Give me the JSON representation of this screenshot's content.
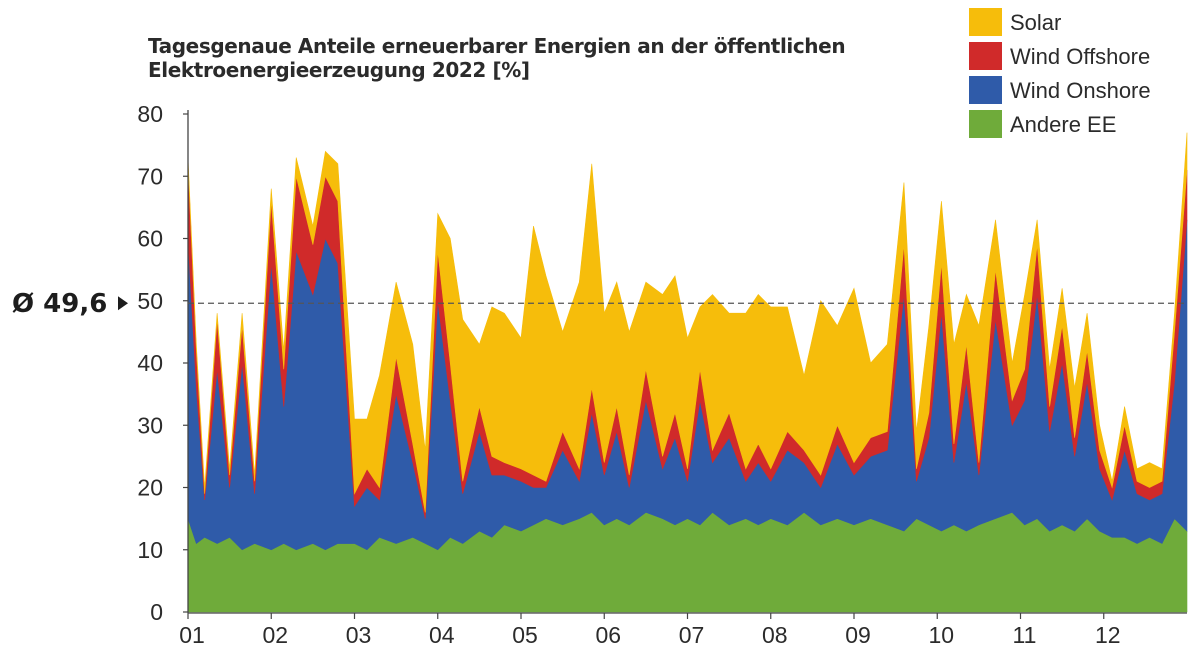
{
  "chart_data": {
    "type": "area",
    "stacked": true,
    "title": "Tagesgenaue Anteile erneuerbarer Energien an der öffentlichen Elektroenergieerzeugung 2022 [%]",
    "title_lines": [
      "Tagesgenaue Anteile erneuerbarer Energien an der öffentlichen",
      "Elektroenergieerzeugung 2022 [%]"
    ],
    "xlabel": "",
    "ylabel": "",
    "ylim": [
      0,
      80
    ],
    "yticks": [
      0,
      10,
      20,
      30,
      40,
      50,
      60,
      70,
      80
    ],
    "xticks": [
      "01",
      "02",
      "03",
      "04",
      "05",
      "06",
      "07",
      "08",
      "09",
      "10",
      "11",
      "12"
    ],
    "average": {
      "value": 49.6,
      "label": "Ø 49,6"
    },
    "legend_position": "top-right",
    "x_unit": "month (fractional, 1.0 = start of January)",
    "x": [
      1.0,
      1.1,
      1.2,
      1.35,
      1.5,
      1.65,
      1.8,
      2.0,
      2.15,
      2.3,
      2.5,
      2.65,
      2.8,
      3.0,
      3.15,
      3.3,
      3.5,
      3.7,
      3.85,
      4.0,
      4.15,
      4.3,
      4.5,
      4.65,
      4.8,
      5.0,
      5.15,
      5.3,
      5.5,
      5.7,
      5.85,
      6.0,
      6.15,
      6.3,
      6.5,
      6.7,
      6.85,
      7.0,
      7.15,
      7.3,
      7.5,
      7.7,
      7.85,
      8.0,
      8.2,
      8.4,
      8.6,
      8.8,
      9.0,
      9.2,
      9.4,
      9.6,
      9.75,
      9.9,
      10.05,
      10.2,
      10.35,
      10.5,
      10.7,
      10.9,
      11.05,
      11.2,
      11.35,
      11.5,
      11.65,
      11.8,
      11.95,
      12.1,
      12.25,
      12.4,
      12.55,
      12.7,
      12.85,
      13.0
    ],
    "series": [
      {
        "name": "Andere EE",
        "color": "#6fab3a",
        "values": [
          15,
          11,
          12,
          11,
          12,
          10,
          11,
          10,
          11,
          10,
          11,
          10,
          11,
          11,
          10,
          12,
          11,
          12,
          11,
          10,
          12,
          11,
          13,
          12,
          14,
          13,
          14,
          15,
          14,
          15,
          16,
          14,
          15,
          14,
          16,
          15,
          14,
          15,
          14,
          16,
          14,
          15,
          14,
          15,
          14,
          16,
          14,
          15,
          14,
          15,
          14,
          13,
          15,
          14,
          13,
          14,
          13,
          14,
          15,
          16,
          14,
          15,
          13,
          14,
          13,
          15,
          13,
          12,
          12,
          11,
          12,
          11,
          15,
          13
        ]
      },
      {
        "name": "Wind Onshore",
        "color": "#2f5ba9",
        "values": [
          45,
          25,
          6,
          28,
          8,
          30,
          8,
          46,
          22,
          48,
          40,
          50,
          45,
          6,
          10,
          6,
          24,
          12,
          4,
          40,
          22,
          8,
          16,
          10,
          8,
          8,
          6,
          5,
          12,
          6,
          16,
          8,
          14,
          6,
          18,
          8,
          14,
          6,
          20,
          8,
          14,
          6,
          10,
          6,
          12,
          8,
          6,
          12,
          8,
          10,
          12,
          38,
          6,
          14,
          35,
          10,
          24,
          8,
          32,
          14,
          20,
          36,
          16,
          26,
          12,
          22,
          10,
          6,
          14,
          8,
          6,
          8,
          22,
          50
        ]
      },
      {
        "name": "Wind Offshore",
        "color": "#d02a2a",
        "values": [
          12,
          6,
          1,
          8,
          2,
          6,
          2,
          10,
          6,
          12,
          8,
          10,
          10,
          2,
          3,
          2,
          6,
          3,
          1,
          8,
          6,
          2,
          4,
          3,
          2,
          2,
          2,
          1,
          3,
          2,
          4,
          2,
          4,
          2,
          5,
          2,
          4,
          2,
          5,
          2,
          4,
          2,
          3,
          2,
          3,
          2,
          2,
          3,
          2,
          3,
          3,
          8,
          2,
          4,
          8,
          3,
          6,
          2,
          8,
          4,
          5,
          8,
          4,
          6,
          3,
          5,
          3,
          2,
          4,
          2,
          2,
          2,
          8,
          8
        ]
      },
      {
        "name": "Solar",
        "color": "#f6bd0b",
        "values": [
          1,
          1,
          1,
          1,
          1,
          2,
          1,
          2,
          3,
          3,
          3,
          4,
          6,
          12,
          8,
          18,
          12,
          16,
          10,
          6,
          20,
          26,
          10,
          24,
          24,
          21,
          40,
          33,
          16,
          30,
          36,
          24,
          20,
          23,
          14,
          26,
          22,
          21,
          10,
          25,
          16,
          25,
          24,
          26,
          20,
          12,
          28,
          16,
          28,
          12,
          14,
          10,
          6,
          14,
          10,
          16,
          8,
          22,
          8,
          6,
          12,
          4,
          6,
          6,
          8,
          6,
          4,
          1,
          3,
          2,
          4,
          2,
          3,
          6
        ]
      }
    ]
  },
  "legend_order": [
    "Solar",
    "Wind Offshore",
    "Wind Onshore",
    "Andere EE"
  ]
}
